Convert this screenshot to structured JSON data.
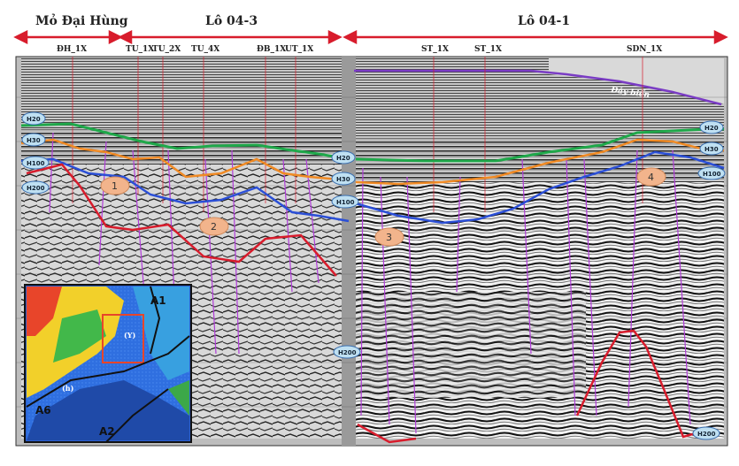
{
  "headers": {
    "left": "Mỏ Đại Hùng",
    "middle": "Lô 04-3",
    "right": "Lô 04-1"
  },
  "wells": [
    "ĐH_1X",
    "TU_1X",
    "TU_2X",
    "TU_4X",
    "ĐB_1X",
    "UT_1X",
    "ST_1X",
    "ST_1X",
    "SDN_1X"
  ],
  "seafloor_label": "Đáy biển",
  "horizon_labels": {
    "h20": "H20",
    "h30": "H30",
    "h100": "H100",
    "h200": "H200"
  },
  "zones": [
    "1",
    "2",
    "3",
    "4"
  ],
  "inset_map": {
    "blocks": [
      "A1",
      "A6",
      "A2"
    ],
    "marker": "(Y)",
    "marker2": "(h)"
  },
  "colors": {
    "h20": "#1fa84a",
    "h30": "#f08a24",
    "h100": "#2b4fd6",
    "h200": "#d81c2c",
    "faults": "#b03cd8",
    "arrow": "#d81c2c",
    "bubble": "#bfe0f2",
    "zone": "#f2b48c"
  }
}
